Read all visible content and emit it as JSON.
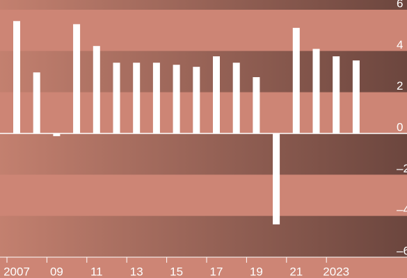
{
  "chart_data": {
    "type": "bar",
    "categories": [
      "2007",
      null,
      "09",
      null,
      "11",
      null,
      "13",
      null,
      "15",
      null,
      "17",
      null,
      "19",
      null,
      "21",
      null,
      "2023",
      null
    ],
    "values": [
      5.45,
      2.96,
      -0.13,
      5.3,
      4.24,
      3.43,
      3.43,
      3.43,
      3.33,
      3.23,
      3.74,
      3.43,
      2.73,
      -4.41,
      5.12,
      4.1,
      3.74,
      3.54
    ],
    "color": "#ffffff",
    "ylim": [
      -6,
      6
    ],
    "yticks": [
      6,
      4,
      2,
      0,
      {
        "value": -2,
        "label": "–2"
      },
      {
        "value": -4,
        "label": "–4"
      },
      {
        "value": -6,
        "label": "–6"
      }
    ]
  }
}
